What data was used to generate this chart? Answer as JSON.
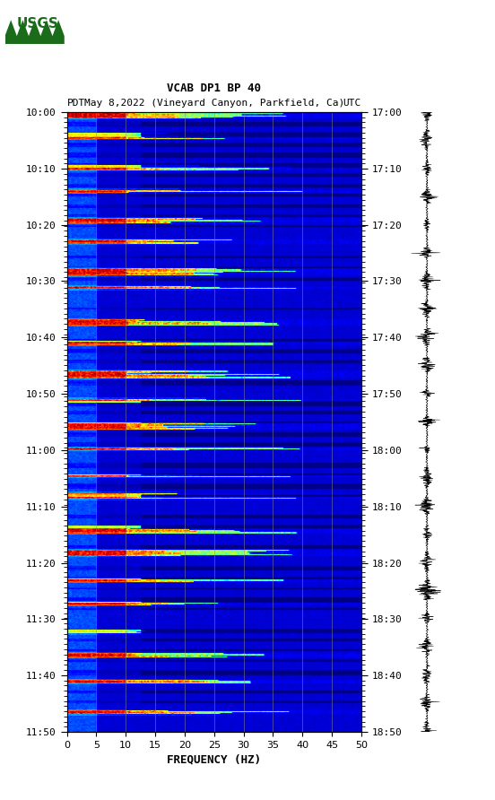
{
  "title_line1": "VCAB DP1 BP 40",
  "title_line2_pdt": "PDT  May 8,2022 (Vineyard Canyon, Parkfield, Ca)       UTC",
  "xlabel": "FREQUENCY (HZ)",
  "freq_min": 0,
  "freq_max": 50,
  "freq_ticks": [
    0,
    5,
    10,
    15,
    20,
    25,
    30,
    35,
    40,
    45,
    50
  ],
  "left_time_labels": [
    "10:00",
    "10:10",
    "10:20",
    "10:30",
    "10:40",
    "10:50",
    "11:00",
    "11:10",
    "11:20",
    "11:30",
    "11:40",
    "11:50"
  ],
  "right_time_labels": [
    "17:00",
    "17:10",
    "17:20",
    "17:30",
    "17:40",
    "17:50",
    "18:00",
    "18:10",
    "18:20",
    "18:30",
    "18:40",
    "18:50"
  ],
  "n_time_steps": 600,
  "n_freq_bins": 500,
  "background_color": "#ffffff",
  "spectrogram_colormap": "jet",
  "vertical_lines_freq": [
    5,
    10,
    15,
    20,
    25,
    30,
    35,
    40,
    45
  ],
  "vertical_line_color": "#888888",
  "vertical_line_alpha": 0.6,
  "usgs_color": "#1a6b1a"
}
